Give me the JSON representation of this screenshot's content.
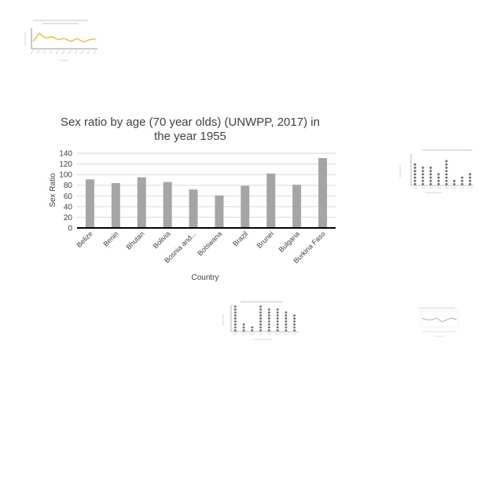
{
  "chart_data": [
    {
      "type": "bar",
      "title_lines": [
        "Sex ratio by age (70 year olds) (UNWPP, 2017) in",
        "the year 1955"
      ],
      "xlabel": "Country",
      "ylabel": "Sex Ratio",
      "ylim": [
        0,
        140
      ],
      "yticks": [
        0,
        20,
        40,
        60,
        80,
        100,
        120,
        140
      ],
      "categories": [
        "Belize",
        "Benin",
        "Bhutan",
        "Bolivia",
        "Bosnia and...",
        "Botswana",
        "Brazil",
        "Brunei",
        "Bulgaria",
        "Burkina Faso"
      ],
      "values": [
        91,
        84,
        95,
        86,
        72,
        61,
        79,
        102,
        81,
        131
      ],
      "bar_color": "#a5a5a5",
      "grid": true
    },
    {
      "type": "line",
      "title": "",
      "series_color": "#f0b323",
      "values": [
        30,
        44,
        36,
        38,
        33,
        35,
        30,
        35,
        29,
        33,
        34
      ]
    },
    {
      "type": "scatter",
      "title": "",
      "values": [
        7,
        6,
        6,
        4,
        8,
        2,
        3,
        4
      ]
    },
    {
      "type": "scatter",
      "title": "",
      "values": [
        9,
        3,
        2,
        9,
        8,
        8,
        7,
        6
      ]
    },
    {
      "type": "line",
      "title": "",
      "series_color": "#9e9e9e",
      "values": [
        5,
        4,
        4,
        5,
        3,
        4,
        5,
        4
      ]
    }
  ]
}
